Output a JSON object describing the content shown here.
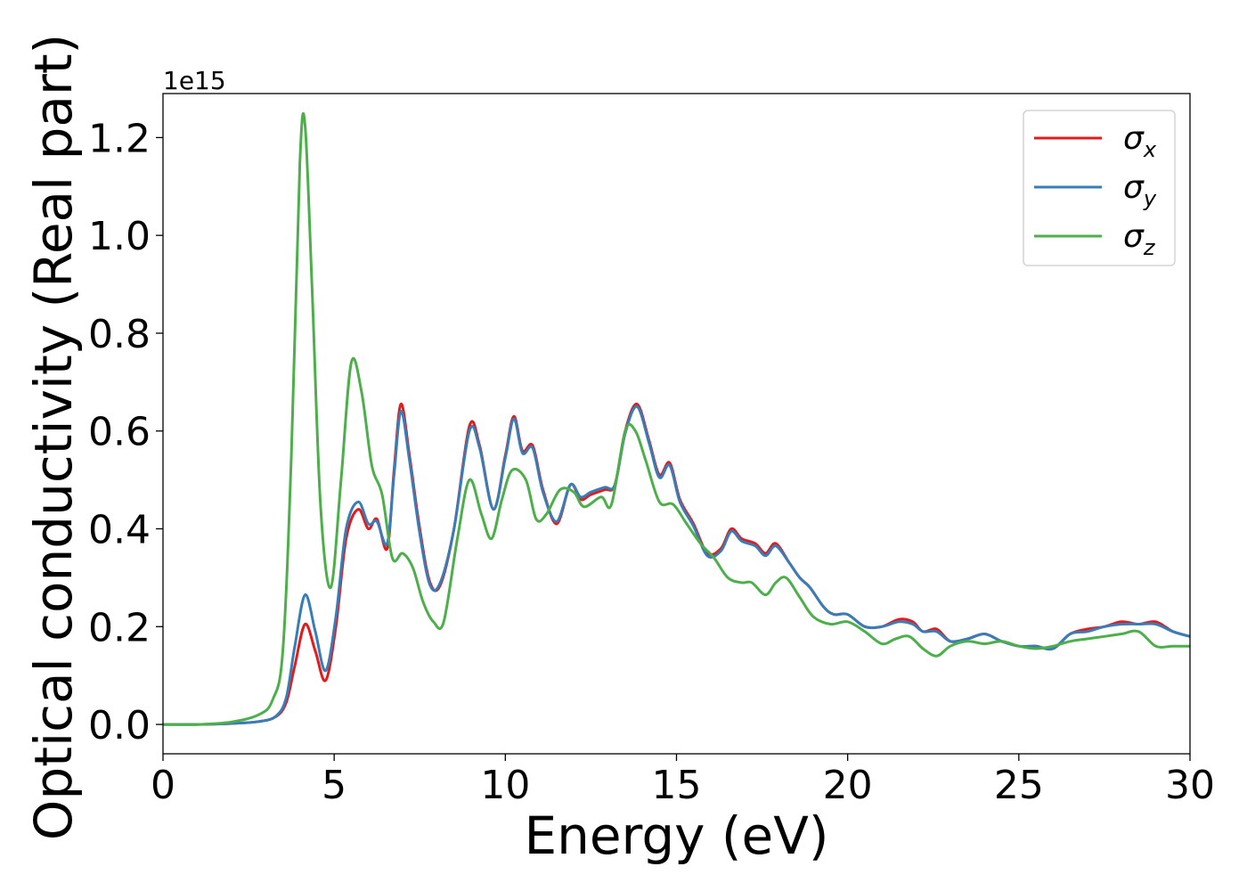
{
  "chart_data": {
    "type": "line",
    "title": "",
    "xlabel": "Energy (eV)",
    "ylabel": "Optical conductivity (Real part)",
    "y_offset_label": "1e15",
    "xlim": [
      0,
      30
    ],
    "ylim": [
      -0.06,
      1.29
    ],
    "x_ticks": [
      0,
      5,
      10,
      15,
      20,
      25,
      30
    ],
    "x_tick_labels": [
      "0",
      "5",
      "10",
      "15",
      "20",
      "25",
      "30"
    ],
    "y_ticks": [
      0.0,
      0.2,
      0.4,
      0.6,
      0.8,
      1.0,
      1.2
    ],
    "y_tick_labels": [
      "0.0",
      "0.2",
      "0.4",
      "0.6",
      "0.8",
      "1.0",
      "1.2"
    ],
    "grid": false,
    "legend_position": "top-right",
    "series": [
      {
        "name": "σx",
        "symbol": "σ",
        "subscript": "x",
        "color": "#e41a1c",
        "x": [
          0,
          1,
          2,
          2.8,
          3.3,
          3.6,
          3.85,
          4.15,
          4.45,
          4.75,
          5.05,
          5.35,
          5.7,
          6.0,
          6.25,
          6.55,
          6.75,
          6.95,
          7.2,
          7.5,
          7.8,
          8.1,
          8.5,
          8.95,
          9.25,
          9.65,
          10.0,
          10.25,
          10.5,
          10.8,
          11.1,
          11.5,
          11.9,
          12.2,
          12.5,
          12.9,
          13.2,
          13.5,
          13.85,
          14.2,
          14.5,
          14.8,
          15.1,
          15.5,
          15.9,
          16.3,
          16.6,
          16.9,
          17.3,
          17.6,
          17.9,
          18.3,
          18.6,
          18.9,
          19.3,
          19.6,
          20.0,
          20.5,
          21.0,
          21.5,
          21.9,
          22.2,
          22.6,
          23.0,
          23.5,
          24.0,
          24.5,
          25.0,
          25.5,
          26.0,
          26.5,
          27.0,
          27.5,
          28.0,
          28.5,
          29.0,
          29.5,
          30.0
        ],
        "values": [
          0,
          0,
          0.002,
          0.006,
          0.016,
          0.045,
          0.12,
          0.205,
          0.15,
          0.09,
          0.2,
          0.38,
          0.44,
          0.4,
          0.42,
          0.36,
          0.52,
          0.655,
          0.55,
          0.4,
          0.29,
          0.285,
          0.4,
          0.61,
          0.57,
          0.44,
          0.55,
          0.63,
          0.56,
          0.57,
          0.48,
          0.41,
          0.49,
          0.46,
          0.47,
          0.48,
          0.49,
          0.6,
          0.655,
          0.58,
          0.51,
          0.535,
          0.46,
          0.41,
          0.35,
          0.36,
          0.4,
          0.38,
          0.37,
          0.35,
          0.37,
          0.33,
          0.3,
          0.28,
          0.24,
          0.225,
          0.225,
          0.2,
          0.2,
          0.215,
          0.21,
          0.19,
          0.195,
          0.17,
          0.175,
          0.185,
          0.17,
          0.16,
          0.16,
          0.155,
          0.185,
          0.195,
          0.2,
          0.21,
          0.205,
          0.21,
          0.19,
          0.18
        ]
      },
      {
        "name": "σy",
        "symbol": "σ",
        "subscript": "y",
        "color": "#377eb8",
        "x": [
          0,
          1,
          2,
          2.8,
          3.3,
          3.6,
          3.85,
          4.15,
          4.45,
          4.75,
          5.05,
          5.35,
          5.7,
          6.0,
          6.25,
          6.55,
          6.75,
          6.95,
          7.2,
          7.5,
          7.8,
          8.1,
          8.5,
          8.95,
          9.25,
          9.65,
          10.0,
          10.25,
          10.5,
          10.8,
          11.1,
          11.5,
          11.9,
          12.2,
          12.5,
          12.9,
          13.2,
          13.5,
          13.85,
          14.2,
          14.5,
          14.8,
          15.1,
          15.5,
          15.9,
          16.3,
          16.6,
          16.9,
          17.3,
          17.6,
          17.9,
          18.3,
          18.6,
          18.9,
          19.3,
          19.6,
          20.0,
          20.5,
          21.0,
          21.5,
          21.9,
          22.2,
          22.6,
          23.0,
          23.5,
          24.0,
          24.5,
          25.0,
          25.5,
          26.0,
          26.5,
          27.0,
          27.5,
          28.0,
          28.5,
          29.0,
          29.5,
          30.0
        ],
        "values": [
          0,
          0,
          0.002,
          0.006,
          0.017,
          0.055,
          0.16,
          0.265,
          0.19,
          0.11,
          0.22,
          0.4,
          0.455,
          0.41,
          0.415,
          0.37,
          0.51,
          0.64,
          0.54,
          0.39,
          0.285,
          0.29,
          0.4,
          0.6,
          0.565,
          0.44,
          0.545,
          0.625,
          0.555,
          0.565,
          0.475,
          0.415,
          0.49,
          0.465,
          0.475,
          0.485,
          0.49,
          0.595,
          0.65,
          0.575,
          0.505,
          0.53,
          0.455,
          0.405,
          0.345,
          0.355,
          0.395,
          0.375,
          0.365,
          0.345,
          0.365,
          0.33,
          0.3,
          0.28,
          0.24,
          0.225,
          0.225,
          0.2,
          0.2,
          0.21,
          0.205,
          0.19,
          0.19,
          0.17,
          0.175,
          0.185,
          0.17,
          0.16,
          0.16,
          0.155,
          0.185,
          0.19,
          0.2,
          0.205,
          0.205,
          0.205,
          0.19,
          0.18
        ]
      },
      {
        "name": "σz",
        "symbol": "σ",
        "subscript": "z",
        "color": "#4daf4a",
        "x": [
          0,
          1,
          2,
          2.8,
          3.2,
          3.5,
          3.75,
          4.0,
          4.15,
          4.35,
          4.6,
          4.9,
          5.2,
          5.5,
          5.8,
          6.1,
          6.4,
          6.7,
          7.0,
          7.3,
          7.6,
          7.9,
          8.2,
          8.6,
          8.95,
          9.3,
          9.6,
          9.9,
          10.2,
          10.6,
          10.9,
          11.2,
          11.6,
          12.0,
          12.3,
          12.8,
          13.1,
          13.5,
          13.8,
          14.1,
          14.5,
          14.9,
          15.3,
          15.7,
          16.1,
          16.5,
          16.9,
          17.2,
          17.6,
          17.9,
          18.2,
          18.6,
          19.0,
          19.5,
          20.0,
          20.5,
          21.0,
          21.4,
          21.8,
          22.2,
          22.6,
          23.0,
          23.5,
          24.0,
          24.5,
          25.0,
          25.5,
          26.0,
          26.5,
          27.0,
          27.5,
          28.0,
          28.5,
          29.0,
          29.5,
          30.0
        ],
        "values": [
          0,
          0,
          0.005,
          0.02,
          0.05,
          0.15,
          0.55,
          1.15,
          1.225,
          0.9,
          0.45,
          0.28,
          0.5,
          0.74,
          0.68,
          0.53,
          0.47,
          0.34,
          0.35,
          0.32,
          0.25,
          0.21,
          0.21,
          0.38,
          0.5,
          0.43,
          0.38,
          0.46,
          0.52,
          0.5,
          0.42,
          0.43,
          0.48,
          0.475,
          0.445,
          0.465,
          0.45,
          0.6,
          0.6,
          0.54,
          0.455,
          0.45,
          0.41,
          0.37,
          0.34,
          0.3,
          0.29,
          0.29,
          0.265,
          0.29,
          0.3,
          0.26,
          0.22,
          0.205,
          0.21,
          0.19,
          0.165,
          0.175,
          0.18,
          0.155,
          0.14,
          0.16,
          0.17,
          0.165,
          0.17,
          0.16,
          0.155,
          0.16,
          0.17,
          0.175,
          0.18,
          0.185,
          0.19,
          0.16,
          0.16,
          0.16
        ]
      }
    ]
  }
}
